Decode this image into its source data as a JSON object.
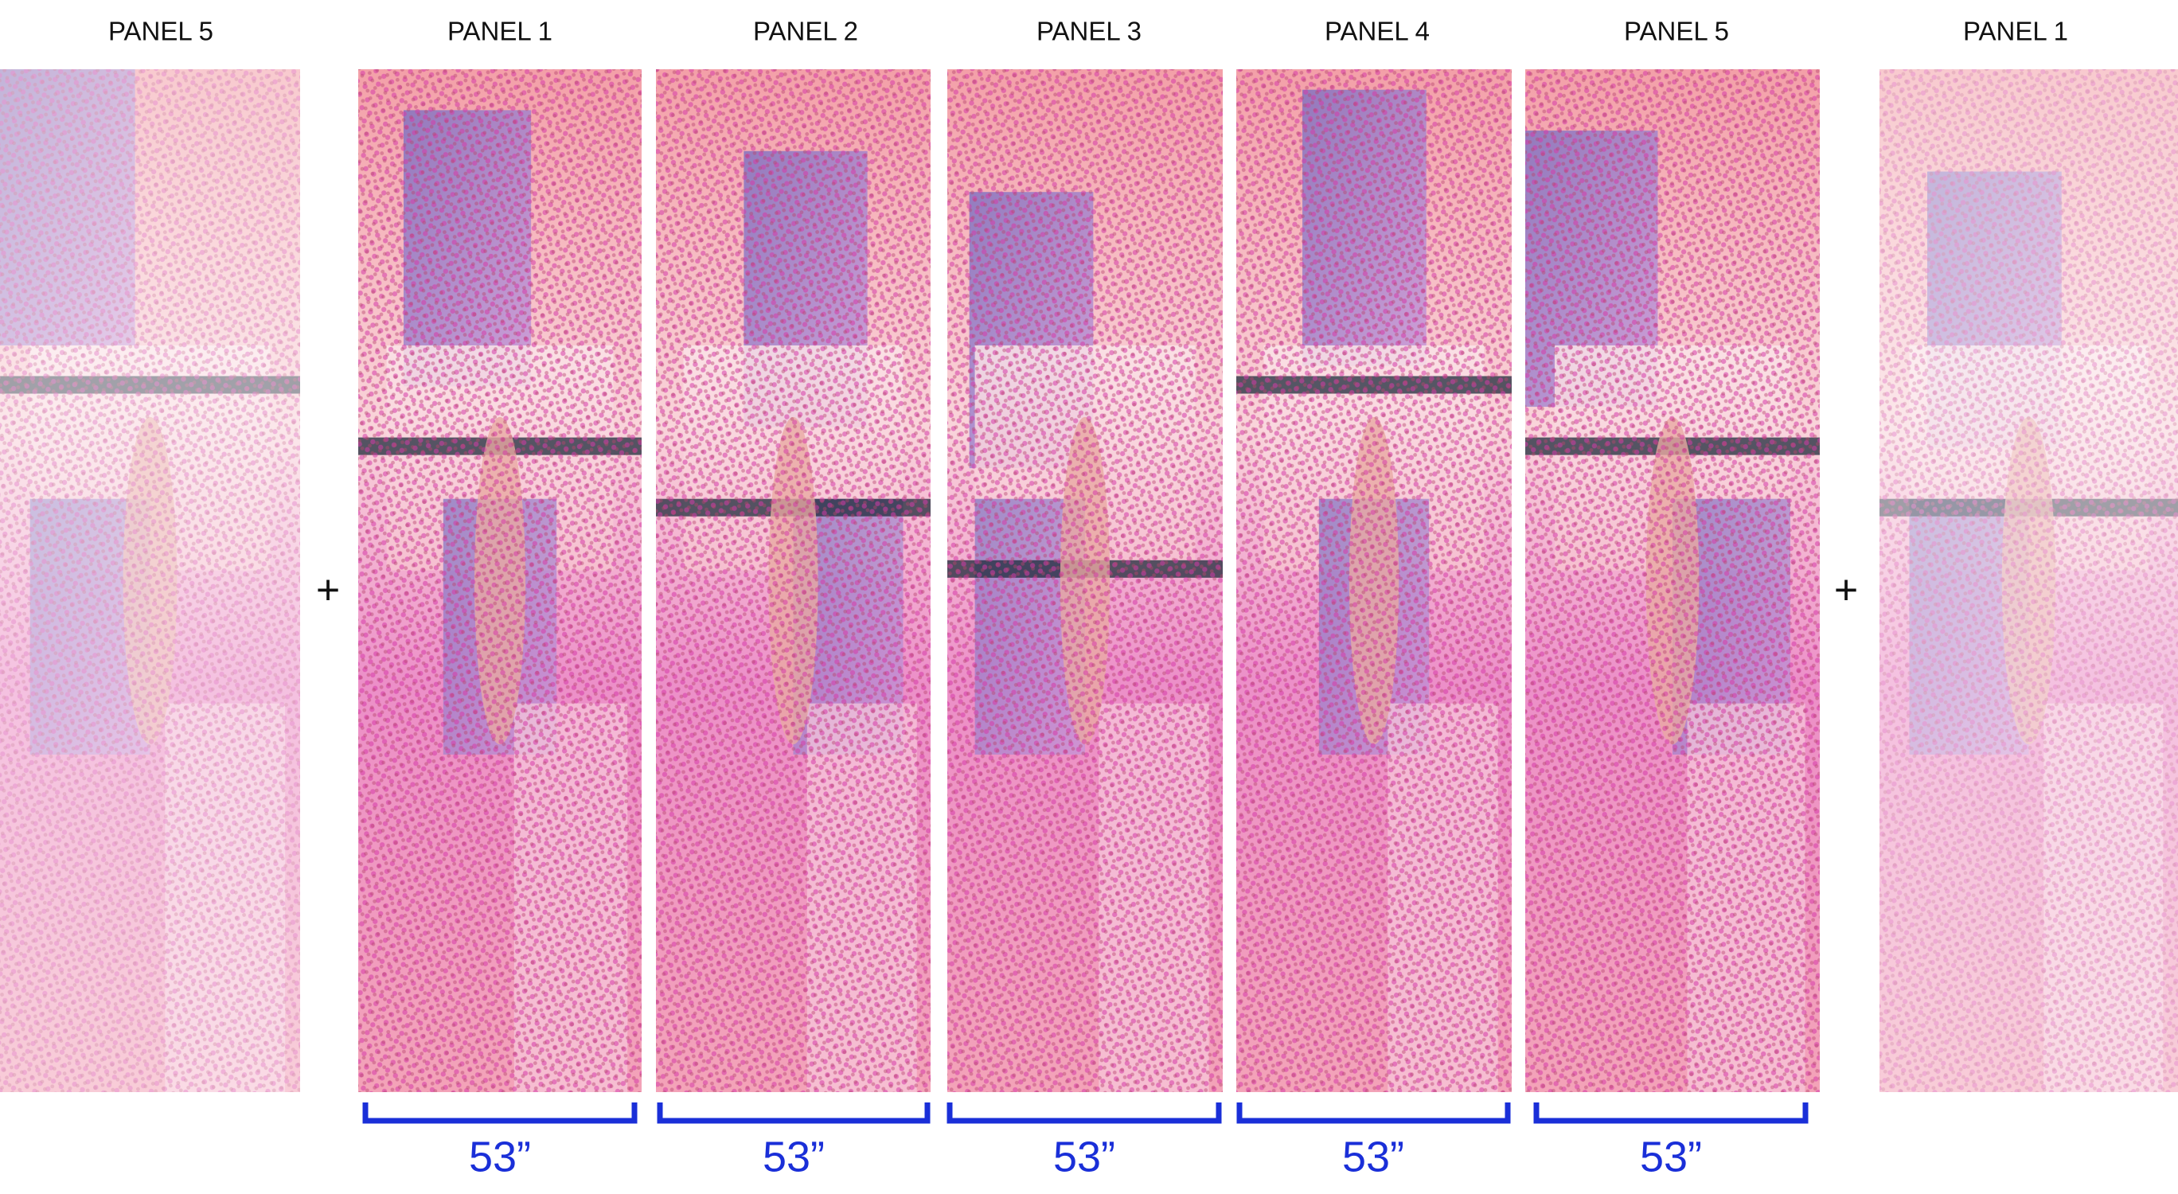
{
  "preview_left": {
    "label": "PANEL 5"
  },
  "panels": [
    {
      "label": "PANEL 1",
      "width": "53”"
    },
    {
      "label": "PANEL 2",
      "width": "53”"
    },
    {
      "label": "PANEL 3",
      "width": "53”"
    },
    {
      "label": "PANEL 4",
      "width": "53”"
    },
    {
      "label": "PANEL 5",
      "width": "53”"
    }
  ],
  "preview_right": {
    "label": "PANEL 1"
  },
  "separators": [
    "+",
    "+"
  ]
}
